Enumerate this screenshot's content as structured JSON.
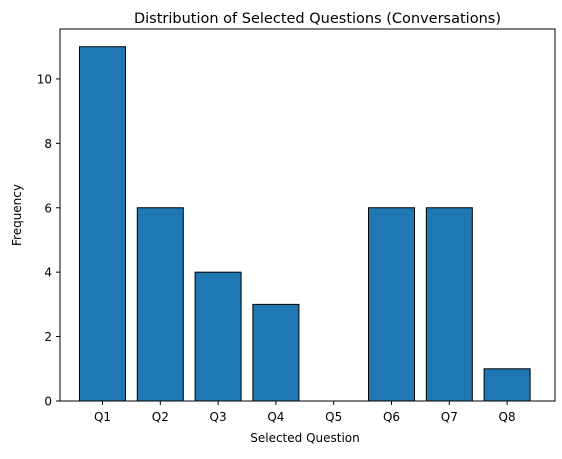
{
  "chart_data": {
    "type": "bar",
    "title": "Distribution of Selected Questions (Conversations)",
    "xlabel": "Selected Question",
    "ylabel": "Frequency",
    "categories": [
      "Q1",
      "Q2",
      "Q3",
      "Q4",
      "Q5",
      "Q6",
      "Q7",
      "Q8"
    ],
    "values": [
      11,
      6,
      4,
      3,
      0,
      6,
      6,
      1
    ],
    "ylim": [
      0,
      11.55
    ],
    "yticks": [
      0,
      2,
      4,
      6,
      8,
      10
    ],
    "ytick_labels": [
      "0",
      "2",
      "4",
      "6",
      "8",
      "10"
    ],
    "bar_color": "#1f77b4",
    "bar_edge_color": "#000000",
    "grid": false,
    "legend": "none"
  }
}
